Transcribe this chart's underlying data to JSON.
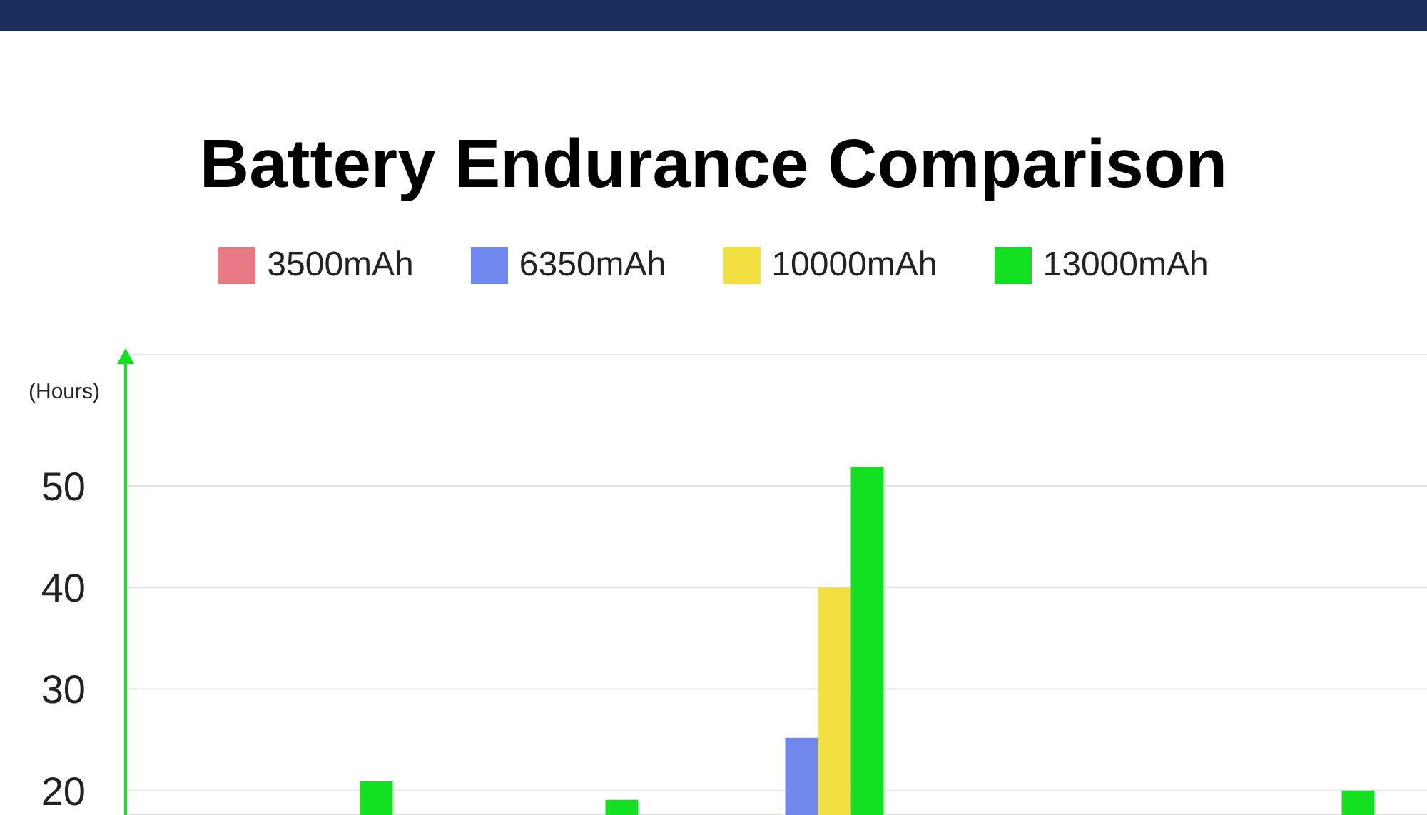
{
  "chart_data": {
    "type": "bar",
    "title": "Battery Endurance Comparison",
    "ylabel": "(Hours)",
    "categories": [
      null,
      null,
      null,
      null,
      null
    ],
    "series": [
      {
        "name": "3500mAh",
        "color": "#e87a86",
        "values": [
          null,
          null,
          null,
          null,
          null
        ]
      },
      {
        "name": "6350mAh",
        "color": "#7088ee",
        "values": [
          null,
          null,
          25.2,
          null,
          null
        ]
      },
      {
        "name": "10000mAh",
        "color": "#f2e042",
        "values": [
          null,
          null,
          40.0,
          null,
          null
        ]
      },
      {
        "name": "13000mAh",
        "color": "#12e020",
        "values": [
          20.9,
          19.1,
          51.9,
          null,
          20.0
        ]
      }
    ],
    "ylim": [
      17.6,
      63
    ],
    "yticks": [
      20,
      30,
      40,
      50
    ],
    "grid": "y",
    "legend": "top"
  }
}
